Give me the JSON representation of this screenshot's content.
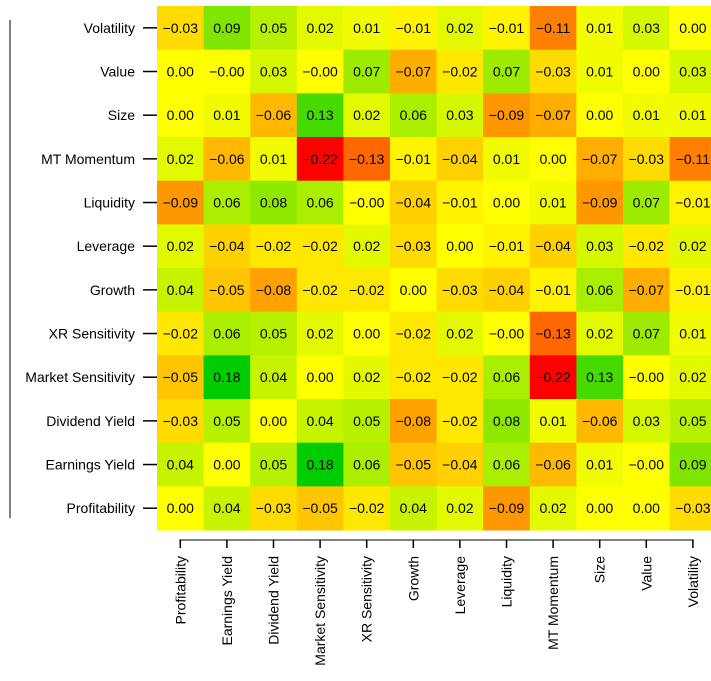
{
  "chart_data": {
    "type": "heatmap",
    "title": "",
    "xlabel": "",
    "ylabel": "",
    "x_categories": [
      "Profitability",
      "Earnings Yield",
      "Dividend Yield",
      "Market Sensitivity",
      "XR Sensitivity",
      "Growth",
      "Leverage",
      "Liquidity",
      "MT Momentum",
      "Size",
      "Value",
      "Volatility"
    ],
    "y_categories_top_to_bottom": [
      "Volatility",
      "Value",
      "Size",
      "MT Momentum",
      "Liquidity",
      "Leverage",
      "Growth",
      "XR Sensitivity",
      "Market Sensitivity",
      "Dividend Yield",
      "Earnings Yield",
      "Profitability"
    ],
    "values": [
      [
        -0.03,
        0.09,
        0.05,
        0.02,
        0.01,
        -0.01,
        0.02,
        -0.01,
        -0.11,
        0.01,
        0.03,
        0.0
      ],
      [
        0.0,
        -0.0,
        0.03,
        -0.0,
        0.07,
        -0.07,
        -0.02,
        0.07,
        -0.03,
        0.01,
        0.0,
        0.03
      ],
      [
        0.0,
        0.01,
        -0.06,
        0.13,
        0.02,
        0.06,
        0.03,
        -0.09,
        -0.07,
        0.0,
        0.01,
        0.01
      ],
      [
        0.02,
        -0.06,
        0.01,
        -0.22,
        -0.13,
        -0.01,
        -0.04,
        0.01,
        0.0,
        -0.07,
        -0.03,
        -0.11
      ],
      [
        -0.09,
        0.06,
        0.08,
        0.06,
        -0.0,
        -0.04,
        -0.01,
        0.0,
        0.01,
        -0.09,
        0.07,
        -0.01
      ],
      [
        0.02,
        -0.04,
        -0.02,
        -0.02,
        0.02,
        -0.03,
        0.0,
        -0.01,
        -0.04,
        0.03,
        -0.02,
        0.02
      ],
      [
        0.04,
        -0.05,
        -0.08,
        -0.02,
        -0.02,
        0.0,
        -0.03,
        -0.04,
        -0.01,
        0.06,
        -0.07,
        -0.01
      ],
      [
        -0.02,
        0.06,
        0.05,
        0.02,
        0.0,
        -0.02,
        0.02,
        -0.0,
        -0.13,
        0.02,
        0.07,
        0.01
      ],
      [
        -0.05,
        0.18,
        0.04,
        0.0,
        0.02,
        -0.02,
        -0.02,
        0.06,
        -0.22,
        0.13,
        -0.0,
        0.02
      ],
      [
        -0.03,
        0.05,
        0.0,
        0.04,
        0.05,
        -0.08,
        -0.02,
        0.08,
        0.01,
        -0.06,
        0.03,
        0.05
      ],
      [
        0.04,
        0.0,
        0.05,
        0.18,
        0.06,
        -0.05,
        -0.04,
        0.06,
        -0.06,
        0.01,
        -0.0,
        0.09
      ],
      [
        0.0,
        0.04,
        -0.03,
        -0.05,
        -0.02,
        0.04,
        0.02,
        -0.09,
        0.02,
        0.0,
        0.0,
        -0.03
      ]
    ],
    "color_range": [
      -0.22,
      0.18
    ],
    "colors": {
      "negative": "#ff0000",
      "middle": "#ffff00",
      "positive": "#00cc00"
    },
    "grid": false,
    "legend": "none"
  }
}
